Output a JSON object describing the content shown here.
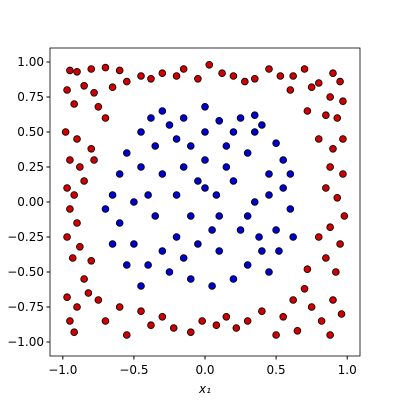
{
  "chart_data": {
    "type": "scatter",
    "x_label": "x₁",
    "xlim": [
      -1.09,
      1.09
    ],
    "ylim": [
      -1.1,
      1.1
    ],
    "xticks": [
      {
        "value": -1,
        "label": "−1.0"
      },
      {
        "value": -0.5,
        "label": "−0.5"
      },
      {
        "value": 0,
        "label": "0.0"
      },
      {
        "value": 0.5,
        "label": "0.5"
      },
      {
        "value": 1,
        "label": "1.0"
      }
    ],
    "yticks": [
      {
        "value": -1,
        "label": "−1.00"
      },
      {
        "value": -0.75,
        "label": "−0.75"
      },
      {
        "value": -0.5,
        "label": "−0.50"
      },
      {
        "value": -0.25,
        "label": "−0.25"
      },
      {
        "value": 0,
        "label": "0.00"
      },
      {
        "value": 0.25,
        "label": "0.25"
      },
      {
        "value": 0.5,
        "label": "0.50"
      },
      {
        "value": 0.75,
        "label": "0.75"
      },
      {
        "value": 1,
        "label": "1.00"
      }
    ],
    "grid": false,
    "series": [
      {
        "color": "#cc0000",
        "x": [
          -0.95,
          -0.9,
          -0.8,
          -0.7,
          -0.6,
          -0.45,
          -0.38,
          -0.3,
          -0.2,
          -0.15,
          -0.05,
          0.03,
          0.12,
          0.2,
          0.28,
          0.35,
          0.45,
          0.53,
          0.62,
          0.7,
          0.8,
          0.9,
          0.95,
          -0.97,
          -0.85,
          -0.78,
          -0.65,
          -0.55,
          0.6,
          0.75,
          0.88,
          0.97,
          -0.92,
          -0.75,
          -0.7,
          0.72,
          0.85,
          0.93,
          -0.98,
          -0.9,
          -0.8,
          -0.78,
          -0.95,
          -0.88,
          -0.97,
          -0.92,
          -0.85,
          -0.95,
          -0.9,
          -0.97,
          -0.88,
          -0.8,
          -0.93,
          -0.85,
          0.8,
          0.9,
          0.97,
          0.88,
          0.97,
          0.85,
          0.93,
          0.98,
          0.88,
          0.8,
          0.95,
          0.85,
          0.72,
          0.92,
          -0.97,
          -0.9,
          -0.95,
          -0.92,
          -0.82,
          -0.75,
          -0.7,
          -0.6,
          -0.55,
          -0.45,
          -0.38,
          -0.3,
          -0.22,
          -0.1,
          -0.02,
          0.08,
          0.15,
          0.22,
          0.3,
          0.4,
          0.5,
          0.55,
          0.62,
          0.7,
          0.75,
          0.82,
          0.9,
          0.96,
          0.88,
          0.65
        ],
        "values": [
          0.94,
          0.93,
          0.95,
          0.96,
          0.94,
          0.9,
          0.88,
          0.92,
          0.9,
          0.95,
          0.88,
          0.98,
          0.92,
          0.9,
          0.86,
          0.88,
          0.95,
          0.9,
          0.9,
          0.95,
          0.85,
          0.92,
          0.86,
          0.8,
          0.83,
          0.78,
          0.82,
          0.86,
          0.8,
          0.82,
          0.75,
          0.72,
          0.7,
          0.68,
          0.6,
          0.65,
          0.62,
          0.6,
          0.5,
          0.45,
          0.38,
          0.3,
          0.3,
          0.25,
          0.1,
          0.05,
          0.15,
          -0.05,
          -0.15,
          -0.25,
          -0.32,
          -0.42,
          -0.4,
          -0.55,
          0.45,
          0.38,
          0.45,
          0.25,
          0.2,
          0.1,
          0.03,
          -0.1,
          -0.18,
          -0.25,
          -0.3,
          -0.4,
          -0.48,
          -0.5,
          -0.68,
          -0.75,
          -0.85,
          -0.93,
          -0.65,
          -0.7,
          -0.85,
          -0.75,
          -0.95,
          -0.78,
          -0.88,
          -0.82,
          -0.9,
          -0.93,
          -0.85,
          -0.88,
          -0.82,
          -0.9,
          -0.85,
          -0.78,
          -0.95,
          -0.82,
          -0.7,
          -0.62,
          -0.75,
          -0.85,
          -0.7,
          -0.8,
          -0.95,
          -0.92
        ]
      },
      {
        "color": "#0000cc",
        "x": [
          -0.3,
          -0.15,
          0.0,
          0.1,
          0.25,
          0.4,
          0.5,
          -0.45,
          -0.55,
          -0.35,
          -0.2,
          0.0,
          0.15,
          0.3,
          0.45,
          0.55,
          0.6,
          0.5,
          0.4,
          0.3,
          0.2,
          0.05,
          -0.1,
          -0.25,
          -0.4,
          -0.5,
          -0.6,
          -0.65,
          -0.6,
          -0.45,
          -0.3,
          -0.15,
          0.0,
          0.2,
          0.35,
          0.25,
          0.1,
          -0.05,
          -0.2,
          -0.35,
          -0.4,
          -0.2,
          0.0,
          0.1,
          -0.1,
          0.15,
          -0.25,
          0.35,
          0.55,
          -0.65,
          -0.55,
          0.45,
          0.6,
          -0.1,
          0.05,
          0.3,
          -0.5,
          0.45,
          -0.3,
          0.2,
          -0.05,
          0.38,
          -0.15,
          0.08,
          0.62,
          -0.7,
          -0.45,
          0.35,
          0.52,
          -0.38
        ],
        "values": [
          0.65,
          0.6,
          0.68,
          0.58,
          0.6,
          0.55,
          0.42,
          0.5,
          0.35,
          0.4,
          0.45,
          0.5,
          0.4,
          0.35,
          0.2,
          0.1,
          -0.05,
          -0.2,
          -0.35,
          -0.45,
          -0.55,
          -0.6,
          -0.55,
          -0.5,
          -0.45,
          -0.3,
          -0.15,
          0.05,
          0.2,
          0.25,
          0.2,
          0.25,
          0.3,
          0.15,
          0.0,
          -0.2,
          -0.35,
          -0.3,
          -0.25,
          -0.1,
          0.05,
          0.05,
          0.1,
          -0.1,
          -0.1,
          0.25,
          0.55,
          0.5,
          0.3,
          -0.3,
          -0.45,
          -0.5,
          0.2,
          0.4,
          -0.2,
          -0.1,
          0.0,
          0.05,
          -0.35,
          0.5,
          0.15,
          -0.25,
          -0.4,
          0.05,
          -0.25,
          -0.05,
          -0.6,
          0.62,
          -0.35,
          0.6
        ]
      }
    ]
  }
}
